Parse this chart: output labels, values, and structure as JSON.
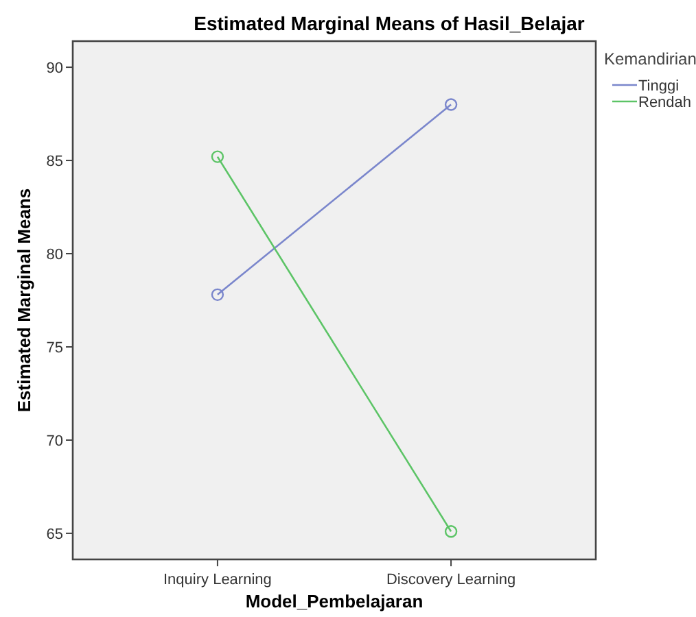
{
  "chart_data": {
    "type": "line",
    "title": "Estimated Marginal Means of Hasil_Belajar",
    "xlabel": "Model_Pembelajaran",
    "ylabel": "Estimated Marginal Means",
    "legend_title": "Kemandirian",
    "categories": [
      "Inquiry Learning",
      "Discovery Learning"
    ],
    "series": [
      {
        "name": "Tinggi",
        "color": "#7a86cc",
        "values": [
          77.8,
          88.0
        ]
      },
      {
        "name": "Rendah",
        "color": "#5cc466",
        "values": [
          85.2,
          65.1
        ]
      }
    ],
    "ylim": [
      63.6,
      91.4
    ],
    "yticks": [
      65,
      70,
      75,
      80,
      85,
      90
    ],
    "marker": "circle",
    "legend": "top right",
    "grid": false
  }
}
